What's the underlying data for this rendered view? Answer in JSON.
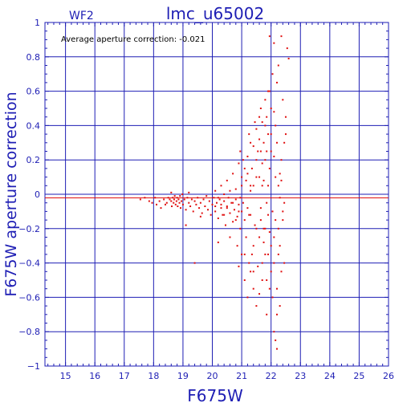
{
  "chart_data": {
    "type": "scatter",
    "panel_label": "WF2",
    "title": "lmc_u65002",
    "annotation": "Average aperture correction: -0.021",
    "xlabel": "F675W",
    "ylabel": "F675W aperture correction",
    "xlim": [
      14.3,
      26
    ],
    "ylim": [
      -1,
      1
    ],
    "x_ticks": [
      15,
      16,
      17,
      18,
      19,
      20,
      21,
      22,
      23,
      24,
      25,
      26
    ],
    "y_ticks": [
      -1,
      -0.8,
      -0.6,
      -0.4,
      -0.2,
      0,
      0.2,
      0.4,
      0.6,
      0.8,
      1
    ],
    "y_tick_labels": [
      "−1",
      "−0.8",
      "−0.6",
      "−0.4",
      "−0.2",
      "0",
      "0.2",
      "0.4",
      "0.6",
      "0.8",
      "1"
    ],
    "grid": true,
    "reference_line_y": -0.021,
    "colors": {
      "frame": "#1e1eb4",
      "points": "#e01010",
      "reference": "#e01010",
      "annotation": "#000000"
    },
    "series": [
      {
        "points": [
          [
            17.55,
            -0.03
          ],
          [
            17.7,
            -0.02
          ],
          [
            17.85,
            -0.04
          ],
          [
            17.95,
            -0.05
          ],
          [
            18.05,
            -0.02
          ],
          [
            18.1,
            -0.06
          ],
          [
            18.2,
            -0.04
          ],
          [
            18.25,
            -0.08
          ],
          [
            18.35,
            -0.03
          ],
          [
            18.4,
            -0.06
          ],
          [
            18.45,
            -0.05
          ],
          [
            18.5,
            -0.02
          ],
          [
            18.55,
            -0.03
          ],
          [
            18.6,
            -0.04
          ],
          [
            18.62,
            -0.07
          ],
          [
            18.65,
            -0.02
          ],
          [
            18.68,
            -0.05
          ],
          [
            18.7,
            -0.03
          ],
          [
            18.72,
            -0.01
          ],
          [
            18.75,
            -0.06
          ],
          [
            18.78,
            -0.04
          ],
          [
            18.8,
            -0.02
          ],
          [
            18.82,
            -0.07
          ],
          [
            18.85,
            -0.03
          ],
          [
            18.88,
            -0.05
          ],
          [
            18.9,
            -0.01
          ],
          [
            18.92,
            -0.08
          ],
          [
            18.95,
            -0.04
          ],
          [
            18.98,
            0.0
          ],
          [
            19.0,
            -0.06
          ],
          [
            19.05,
            -0.03
          ],
          [
            19.1,
            -0.09
          ],
          [
            19.15,
            -0.02
          ],
          [
            19.2,
            -0.05
          ],
          [
            19.25,
            -0.07
          ],
          [
            19.3,
            -0.03
          ],
          [
            19.35,
            -0.1
          ],
          [
            19.4,
            -0.04
          ],
          [
            19.45,
            -0.06
          ],
          [
            19.5,
            -0.02
          ],
          [
            19.55,
            -0.08
          ],
          [
            19.6,
            -0.05
          ],
          [
            19.65,
            -0.11
          ],
          [
            19.7,
            -0.03
          ],
          [
            19.75,
            -0.07
          ],
          [
            19.8,
            -0.01
          ],
          [
            19.85,
            -0.09
          ],
          [
            19.9,
            -0.04
          ],
          [
            19.95,
            -0.12
          ],
          [
            20.0,
            -0.06
          ],
          [
            20.05,
            -0.02
          ],
          [
            20.1,
            -0.1
          ],
          [
            20.15,
            -0.05
          ],
          [
            20.2,
            -0.14
          ],
          [
            20.25,
            -0.03
          ],
          [
            20.3,
            -0.08
          ],
          [
            20.35,
            -0.12
          ],
          [
            20.4,
            -0.04
          ],
          [
            20.45,
            -0.18
          ],
          [
            20.5,
            -0.07
          ],
          [
            20.55,
            -0.02
          ],
          [
            20.6,
            -0.11
          ],
          [
            20.65,
            -0.05
          ],
          [
            20.7,
            -0.16
          ],
          [
            20.75,
            -0.09
          ],
          [
            20.8,
            -0.03
          ],
          [
            20.85,
            -0.13
          ],
          [
            20.9,
            -0.06
          ],
          [
            20.95,
            -0.2
          ],
          [
            21.0,
            -0.1
          ],
          [
            18.6,
            0.01
          ],
          [
            19.2,
            0.01
          ],
          [
            19.6,
            -0.13
          ],
          [
            19.4,
            -0.4
          ],
          [
            19.1,
            -0.18
          ],
          [
            20.3,
            0.05
          ],
          [
            20.4,
            0.0
          ],
          [
            20.5,
            0.08
          ],
          [
            20.6,
            -0.25
          ],
          [
            20.7,
            0.12
          ],
          [
            20.8,
            0.03
          ],
          [
            20.85,
            -0.3
          ],
          [
            20.9,
            0.18
          ],
          [
            20.95,
            -0.02
          ],
          [
            21.0,
            0.1
          ],
          [
            20.2,
            -0.28
          ],
          [
            20.1,
            0.02
          ],
          [
            21.05,
            -0.05
          ],
          [
            21.1,
            0.15
          ],
          [
            21.15,
            -0.25
          ],
          [
            21.2,
            0.22
          ],
          [
            21.25,
            -0.12
          ],
          [
            21.3,
            0.05
          ],
          [
            21.35,
            -0.35
          ],
          [
            21.4,
            0.28
          ],
          [
            21.45,
            -0.18
          ],
          [
            21.5,
            0.1
          ],
          [
            21.55,
            -0.42
          ],
          [
            21.6,
            0.32
          ],
          [
            21.65,
            -0.08
          ],
          [
            21.7,
            0.18
          ],
          [
            21.75,
            -0.28
          ],
          [
            21.8,
            0.4
          ],
          [
            21.85,
            -0.5
          ],
          [
            21.9,
            0.05
          ],
          [
            21.95,
            -0.22
          ],
          [
            22.0,
            0.25
          ],
          [
            22.05,
            -0.6
          ],
          [
            22.1,
            0.48
          ],
          [
            22.15,
            -0.15
          ],
          [
            22.2,
            0.65
          ],
          [
            22.25,
            -0.35
          ],
          [
            22.3,
            0.12
          ],
          [
            22.35,
            -0.45
          ],
          [
            22.4,
            0.55
          ],
          [
            22.45,
            -0.05
          ],
          [
            22.5,
            0.35
          ],
          [
            21.1,
            -0.5
          ],
          [
            21.2,
            -0.6
          ],
          [
            21.3,
            -0.45
          ],
          [
            21.4,
            -0.55
          ],
          [
            21.5,
            -0.65
          ],
          [
            21.6,
            -0.58
          ],
          [
            21.0,
            -0.35
          ],
          [
            20.9,
            -0.42
          ],
          [
            21.25,
            0.35
          ],
          [
            21.45,
            0.42
          ],
          [
            21.55,
            0.25
          ],
          [
            21.65,
            0.5
          ],
          [
            21.7,
            -0.4
          ],
          [
            21.75,
            0.3
          ],
          [
            21.8,
            -0.2
          ],
          [
            21.85,
            0.45
          ],
          [
            21.9,
            -0.35
          ],
          [
            21.95,
            0.6
          ],
          [
            22.0,
            -0.45
          ],
          [
            22.05,
            0.7
          ],
          [
            22.1,
            -0.25
          ],
          [
            22.15,
            0.4
          ],
          [
            22.2,
            -0.55
          ],
          [
            22.25,
            0.75
          ],
          [
            22.3,
            -0.3
          ],
          [
            22.35,
            0.2
          ],
          [
            22.4,
            -0.1
          ],
          [
            22.45,
            0.3
          ],
          [
            22.5,
            0.45
          ],
          [
            22.55,
            0.85
          ],
          [
            22.1,
            -0.8
          ],
          [
            22.2,
            -0.9
          ],
          [
            22.15,
            -0.85
          ],
          [
            22.35,
            0.92
          ],
          [
            21.95,
            0.92
          ],
          [
            22.6,
            0.79
          ],
          [
            22.1,
            0.88
          ],
          [
            22.25,
            0.05
          ],
          [
            22.3,
            -0.65
          ],
          [
            21.85,
            -0.7
          ],
          [
            21.6,
            -0.25
          ],
          [
            21.3,
            0.02
          ],
          [
            21.4,
            -0.3
          ],
          [
            21.5,
            0.38
          ],
          [
            21.35,
            0.15
          ],
          [
            21.15,
            0.08
          ],
          [
            21.05,
            0.2
          ],
          [
            21.25,
            -0.4
          ],
          [
            20.95,
            0.25
          ],
          [
            21.65,
            -0.15
          ],
          [
            21.75,
            0.08
          ],
          [
            21.85,
            -0.05
          ],
          [
            21.95,
            0.15
          ],
          [
            22.05,
            -0.1
          ],
          [
            22.15,
            0.1
          ],
          [
            22.25,
            -0.2
          ],
          [
            22.35,
            0.08
          ],
          [
            22.45,
            -0.4
          ],
          [
            22.0,
            0.5
          ],
          [
            21.9,
            0.35
          ],
          [
            21.8,
            0.2
          ],
          [
            21.7,
            0.42
          ],
          [
            21.6,
            0.1
          ],
          [
            21.5,
            -0.2
          ],
          [
            21.4,
            0.05
          ],
          [
            21.3,
            -0.12
          ],
          [
            21.2,
            -0.08
          ],
          [
            21.1,
            -0.15
          ],
          [
            21.0,
            0.05
          ],
          [
            20.9,
            -0.1
          ],
          [
            20.8,
            -0.15
          ],
          [
            20.7,
            -0.05
          ],
          [
            20.6,
            0.02
          ],
          [
            20.5,
            -0.08
          ],
          [
            20.4,
            -0.12
          ],
          [
            20.3,
            -0.06
          ],
          [
            20.2,
            -0.02
          ],
          [
            20.1,
            -0.07
          ],
          [
            22.2,
            0.3
          ],
          [
            22.3,
            -0.02
          ],
          [
            22.4,
            -0.15
          ],
          [
            22.1,
            0.22
          ],
          [
            22.0,
            -0.3
          ],
          [
            21.9,
            -0.12
          ],
          [
            21.8,
            0.55
          ],
          [
            21.7,
            -0.5
          ],
          [
            21.6,
            0.45
          ],
          [
            21.5,
            0.2
          ],
          [
            21.4,
            -0.45
          ],
          [
            21.3,
            0.3
          ],
          [
            21.2,
            0.12
          ],
          [
            21.1,
            -0.35
          ],
          [
            22.2,
            -0.7
          ],
          [
            22.1,
            -0.4
          ],
          [
            22.0,
            0.35
          ],
          [
            21.95,
            -0.55
          ],
          [
            21.9,
            0.6
          ],
          [
            21.85,
            0.25
          ],
          [
            21.8,
            -0.35
          ],
          [
            21.75,
            -0.2
          ],
          [
            21.7,
            0.05
          ],
          [
            21.65,
            0.25
          ]
        ]
      }
    ]
  }
}
